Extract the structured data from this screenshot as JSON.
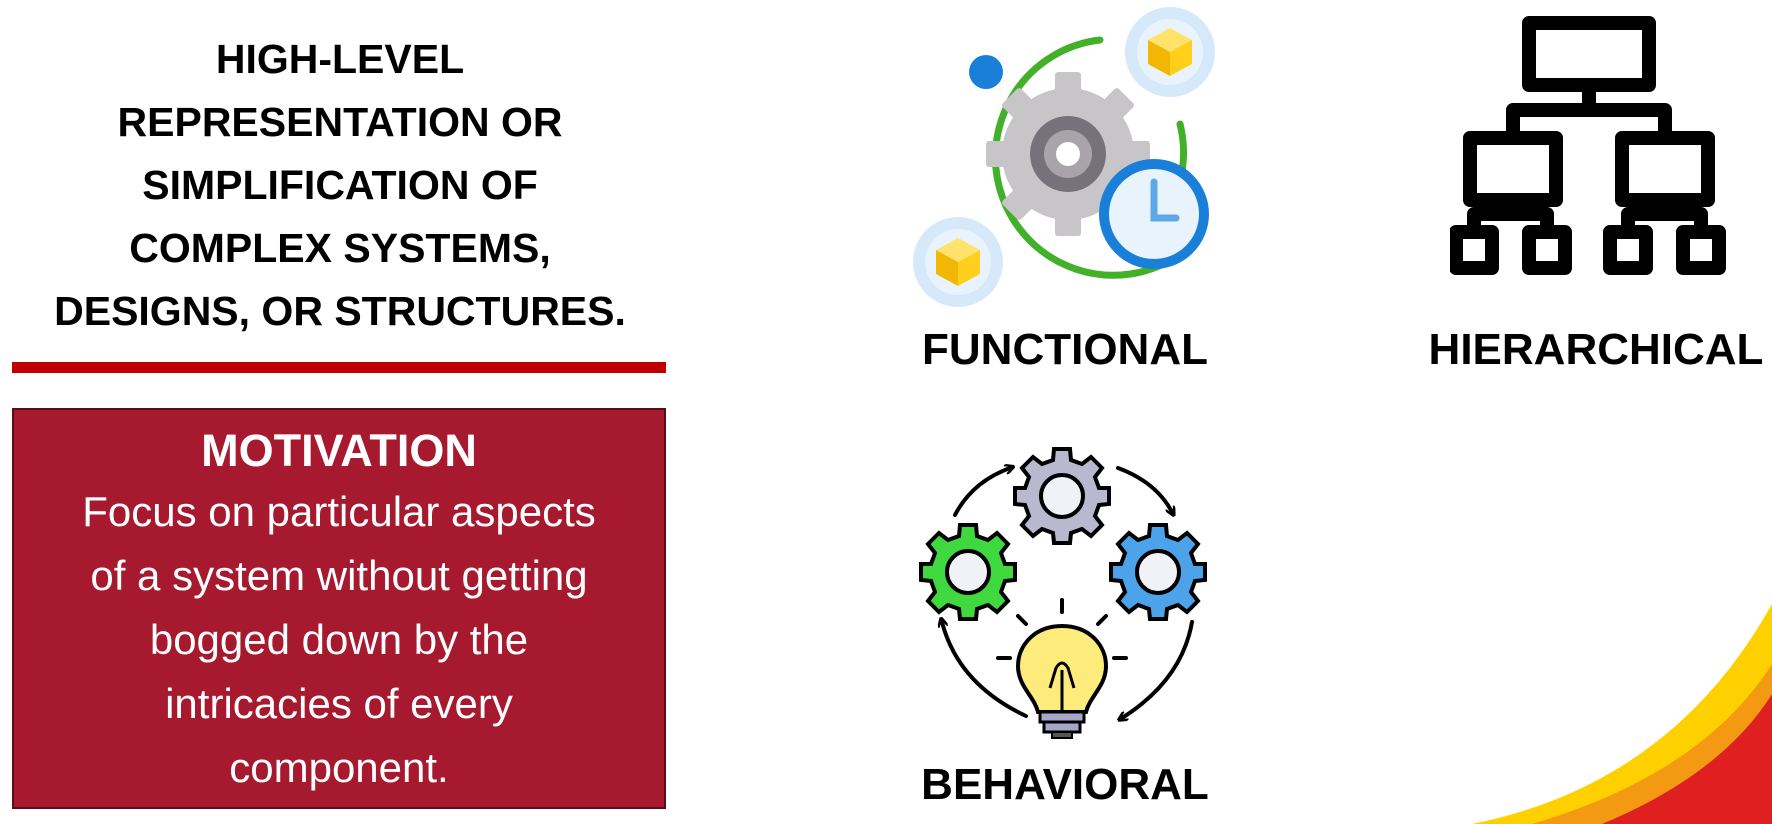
{
  "headline_lines": [
    "HIGH-LEVEL",
    "REPRESENTATION OR",
    "SIMPLIFICATION OF",
    "COMPLEX SYSTEMS,",
    "DESIGNS, OR STRUCTURES."
  ],
  "motivation": {
    "title": "MOTIVATION",
    "body_lines": [
      "Focus on particular aspects",
      "of a system without getting",
      "bogged down by the",
      "intricacies of every",
      "component."
    ]
  },
  "categories": [
    {
      "label": "FUNCTIONAL",
      "icon": "gear-clock-cycle-icon"
    },
    {
      "label": "HIERARCHICAL",
      "icon": "org-chart-icon"
    },
    {
      "label": "BEHAVIORAL",
      "icon": "gears-lightbulb-cycle-icon"
    }
  ],
  "colors": {
    "accent_red": "#c00000",
    "motivation_bg": "#a6192e",
    "corner_yellow": "#ffd000",
    "corner_red": "#e02020"
  }
}
